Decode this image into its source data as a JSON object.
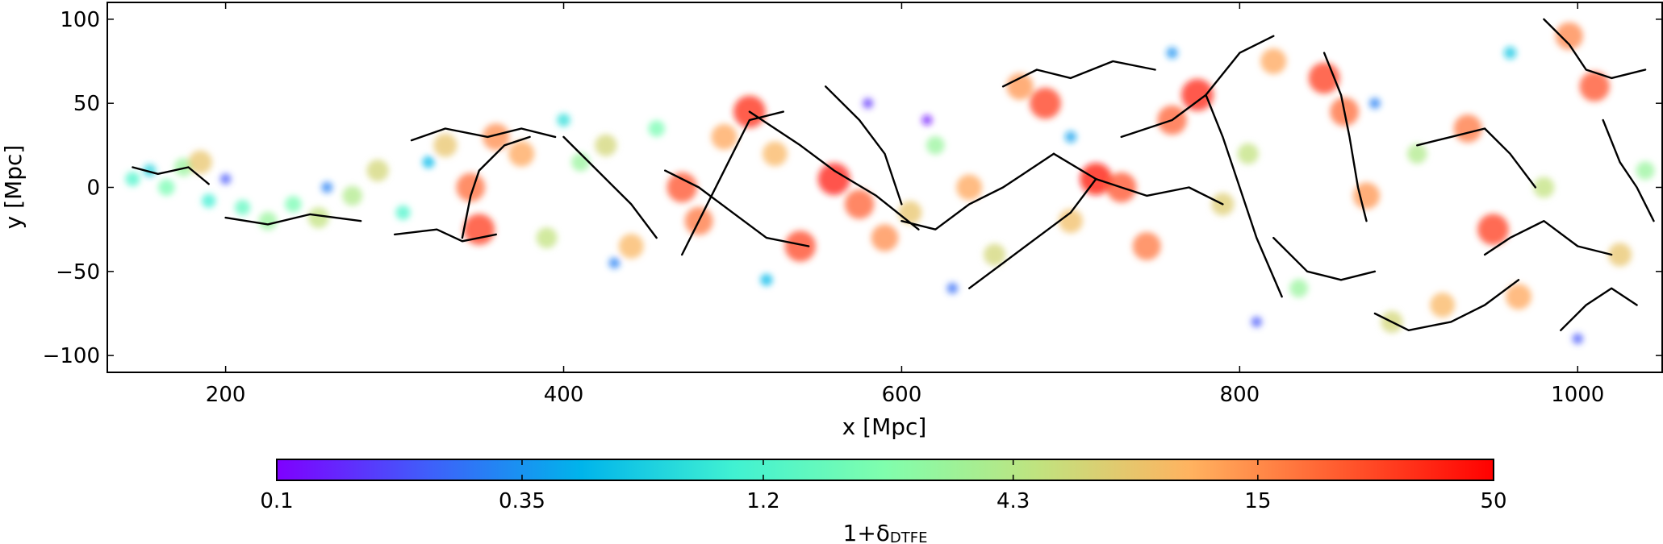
{
  "chart_data": {
    "type": "scatter",
    "title": "",
    "xlabel": "x [Mpc]",
    "ylabel": "y [Mpc]",
    "xlim": [
      130,
      1050
    ],
    "ylim": [
      -110,
      110
    ],
    "x_ticks": [
      200,
      400,
      600,
      800,
      1000
    ],
    "x_tick_labels": [
      "200",
      "400",
      "600",
      "800",
      "1000"
    ],
    "y_ticks": [
      -100,
      -50,
      0,
      50,
      100
    ],
    "y_tick_labels": [
      "−100",
      "−50",
      "0",
      "50",
      "100"
    ],
    "grid": false,
    "series": [
      {
        "kind": "density-points",
        "values": [
          [
            145,
            5,
            1.2
          ],
          [
            155,
            10,
            0.7
          ],
          [
            165,
            0,
            2.0
          ],
          [
            175,
            12,
            3.0
          ],
          [
            185,
            15,
            8.0
          ],
          [
            190,
            -8,
            1.0
          ],
          [
            210,
            -12,
            1.5
          ],
          [
            225,
            -20,
            3.0
          ],
          [
            240,
            -10,
            2.0
          ],
          [
            255,
            -18,
            5.0
          ],
          [
            275,
            -5,
            4.0
          ],
          [
            290,
            10,
            6.0
          ],
          [
            305,
            -15,
            1.2
          ],
          [
            330,
            25,
            8.0
          ],
          [
            345,
            0,
            20
          ],
          [
            350,
            -25,
            30
          ],
          [
            360,
            30,
            15
          ],
          [
            375,
            20,
            12
          ],
          [
            390,
            -30,
            5
          ],
          [
            410,
            15,
            3
          ],
          [
            425,
            25,
            6
          ],
          [
            440,
            -35,
            10
          ],
          [
            455,
            35,
            2
          ],
          [
            470,
            0,
            25
          ],
          [
            480,
            -20,
            18
          ],
          [
            495,
            30,
            12
          ],
          [
            510,
            45,
            35
          ],
          [
            525,
            20,
            10
          ],
          [
            540,
            -35,
            28
          ],
          [
            560,
            5,
            40
          ],
          [
            575,
            -10,
            22
          ],
          [
            590,
            -30,
            15
          ],
          [
            605,
            -15,
            8
          ],
          [
            620,
            25,
            3
          ],
          [
            640,
            0,
            12
          ],
          [
            655,
            -40,
            6
          ],
          [
            670,
            60,
            14
          ],
          [
            685,
            50,
            30
          ],
          [
            700,
            -20,
            9
          ],
          [
            715,
            5,
            45
          ],
          [
            730,
            0,
            25
          ],
          [
            745,
            -35,
            18
          ],
          [
            760,
            40,
            22
          ],
          [
            775,
            55,
            38
          ],
          [
            790,
            -10,
            7
          ],
          [
            805,
            20,
            5
          ],
          [
            820,
            75,
            12
          ],
          [
            835,
            -60,
            3
          ],
          [
            850,
            65,
            30
          ],
          [
            862,
            45,
            20
          ],
          [
            875,
            -5,
            14
          ],
          [
            890,
            -80,
            6
          ],
          [
            905,
            20,
            4
          ],
          [
            920,
            -70,
            10
          ],
          [
            935,
            35,
            18
          ],
          [
            950,
            -25,
            30
          ],
          [
            965,
            -65,
            12
          ],
          [
            980,
            0,
            5
          ],
          [
            995,
            90,
            16
          ],
          [
            1010,
            60,
            25
          ],
          [
            1025,
            -40,
            8
          ],
          [
            1040,
            10,
            3
          ],
          [
            200,
            5,
            0.2
          ],
          [
            260,
            0,
            0.3
          ],
          [
            320,
            15,
            0.5
          ],
          [
            430,
            -45,
            0.3
          ],
          [
            580,
            50,
            0.15
          ],
          [
            630,
            -60,
            0.25
          ],
          [
            700,
            30,
            0.4
          ],
          [
            810,
            -80,
            0.2
          ],
          [
            880,
            50,
            0.3
          ],
          [
            960,
            80,
            0.6
          ],
          [
            1000,
            -90,
            0.2
          ],
          [
            615,
            40,
            0.12
          ],
          [
            760,
            80,
            0.35
          ],
          [
            520,
            -55,
            0.5
          ],
          [
            400,
            40,
            0.8
          ]
        ]
      },
      {
        "kind": "filaments",
        "values": [
          [
            [
              145,
              12
            ],
            [
              160,
              8
            ],
            [
              178,
              12
            ],
            [
              190,
              2
            ]
          ],
          [
            [
              200,
              -18
            ],
            [
              225,
              -22
            ],
            [
              250,
              -16
            ],
            [
              280,
              -20
            ]
          ],
          [
            [
              300,
              -28
            ],
            [
              325,
              -25
            ],
            [
              340,
              -32
            ],
            [
              360,
              -28
            ]
          ],
          [
            [
              310,
              28
            ],
            [
              330,
              35
            ],
            [
              355,
              30
            ],
            [
              375,
              35
            ],
            [
              395,
              30
            ]
          ],
          [
            [
              340,
              -30
            ],
            [
              345,
              -5
            ],
            [
              350,
              10
            ],
            [
              365,
              25
            ],
            [
              380,
              30
            ]
          ],
          [
            [
              400,
              30
            ],
            [
              420,
              10
            ],
            [
              440,
              -10
            ],
            [
              455,
              -30
            ]
          ],
          [
            [
              460,
              10
            ],
            [
              480,
              0
            ],
            [
              500,
              -15
            ],
            [
              520,
              -30
            ],
            [
              545,
              -35
            ]
          ],
          [
            [
              470,
              -40
            ],
            [
              480,
              -20
            ],
            [
              495,
              10
            ],
            [
              510,
              40
            ],
            [
              530,
              45
            ]
          ],
          [
            [
              510,
              45
            ],
            [
              540,
              25
            ],
            [
              560,
              10
            ],
            [
              585,
              -5
            ],
            [
              610,
              -25
            ]
          ],
          [
            [
              555,
              60
            ],
            [
              575,
              40
            ],
            [
              590,
              20
            ],
            [
              600,
              -10
            ]
          ],
          [
            [
              600,
              -20
            ],
            [
              620,
              -25
            ],
            [
              640,
              -10
            ],
            [
              660,
              0
            ],
            [
              690,
              20
            ]
          ],
          [
            [
              640,
              -60
            ],
            [
              660,
              -45
            ],
            [
              680,
              -30
            ],
            [
              700,
              -15
            ],
            [
              715,
              5
            ]
          ],
          [
            [
              660,
              60
            ],
            [
              680,
              70
            ],
            [
              700,
              65
            ],
            [
              725,
              75
            ],
            [
              750,
              70
            ]
          ],
          [
            [
              690,
              20
            ],
            [
              715,
              5
            ],
            [
              745,
              -5
            ],
            [
              770,
              0
            ],
            [
              790,
              -10
            ]
          ],
          [
            [
              730,
              30
            ],
            [
              760,
              40
            ],
            [
              780,
              55
            ],
            [
              800,
              80
            ],
            [
              820,
              90
            ]
          ],
          [
            [
              780,
              55
            ],
            [
              790,
              30
            ],
            [
              800,
              0
            ],
            [
              810,
              -30
            ],
            [
              825,
              -65
            ]
          ],
          [
            [
              820,
              -30
            ],
            [
              840,
              -50
            ],
            [
              860,
              -55
            ],
            [
              880,
              -50
            ]
          ],
          [
            [
              850,
              80
            ],
            [
              860,
              55
            ],
            [
              865,
              30
            ],
            [
              870,
              0
            ],
            [
              875,
              -20
            ]
          ],
          [
            [
              880,
              -75
            ],
            [
              900,
              -85
            ],
            [
              925,
              -80
            ],
            [
              945,
              -70
            ],
            [
              965,
              -55
            ]
          ],
          [
            [
              905,
              25
            ],
            [
              925,
              30
            ],
            [
              945,
              35
            ],
            [
              960,
              20
            ],
            [
              975,
              0
            ]
          ],
          [
            [
              945,
              -40
            ],
            [
              960,
              -30
            ],
            [
              980,
              -20
            ],
            [
              1000,
              -35
            ],
            [
              1020,
              -40
            ]
          ],
          [
            [
              980,
              100
            ],
            [
              995,
              85
            ],
            [
              1005,
              70
            ],
            [
              1020,
              65
            ],
            [
              1040,
              70
            ]
          ],
          [
            [
              1015,
              40
            ],
            [
              1025,
              15
            ],
            [
              1035,
              0
            ],
            [
              1045,
              -20
            ]
          ],
          [
            [
              990,
              -85
            ],
            [
              1005,
              -70
            ],
            [
              1020,
              -60
            ],
            [
              1035,
              -70
            ]
          ]
        ]
      }
    ],
    "colorbar": {
      "label": "1+δ",
      "label_subscript": "DTFE",
      "ticks": [
        "0.1",
        "0.35",
        "1.2",
        "4.3",
        "15",
        "50"
      ],
      "tick_values": [
        0.1,
        0.35,
        1.2,
        4.3,
        15,
        50
      ],
      "scale": "log",
      "range": [
        0.1,
        50
      ],
      "colormap": [
        "#7f00ff",
        "#3f5ffa",
        "#00b4eb",
        "#40f1d2",
        "#80fead",
        "#c0e37f",
        "#ffb360",
        "#ff5a2e",
        "#ff0000"
      ]
    },
    "legend": "none"
  }
}
